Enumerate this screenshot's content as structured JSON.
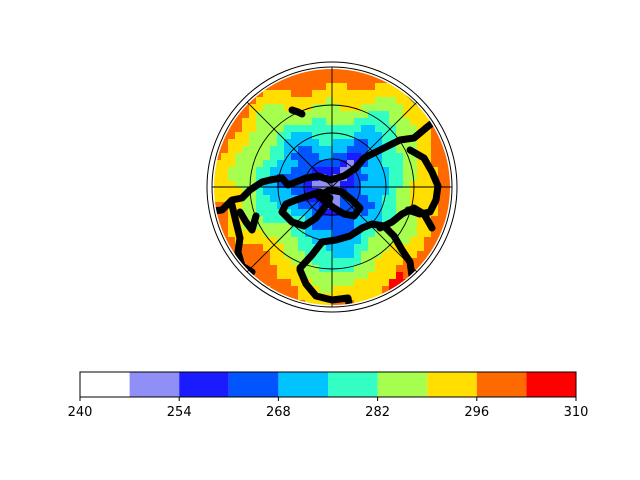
{
  "chart_data": {
    "type": "heatmap",
    "projection": "north-polar-stereographic",
    "title": "",
    "xlabel": "",
    "ylabel": "",
    "colorbar": {
      "orientation": "horizontal",
      "boundaries": [
        240,
        247,
        254,
        261,
        268,
        275,
        282,
        289,
        296,
        303,
        310
      ],
      "colors": [
        "#ffffff",
        "#8f8ff7",
        "#1b1bff",
        "#0055ff",
        "#00c3ff",
        "#33ffc4",
        "#a6ff4f",
        "#ffde00",
        "#ff6a00",
        "#ff0000"
      ],
      "tick_values": [
        240,
        254,
        268,
        282,
        296,
        310
      ],
      "tick_labels": [
        "240",
        "254",
        "268",
        "282",
        "296",
        "310"
      ]
    },
    "field": {
      "pole_value": 249,
      "edge_value": 301,
      "max_value": 306,
      "levels_present": [
        "247-254",
        "254-261",
        "261-268",
        "268-275",
        "275-282",
        "282-289",
        "289-296",
        "296-303",
        "303-310"
      ]
    },
    "grid": {
      "parallels": 3,
      "meridians": 8
    },
    "coastlines": true
  }
}
